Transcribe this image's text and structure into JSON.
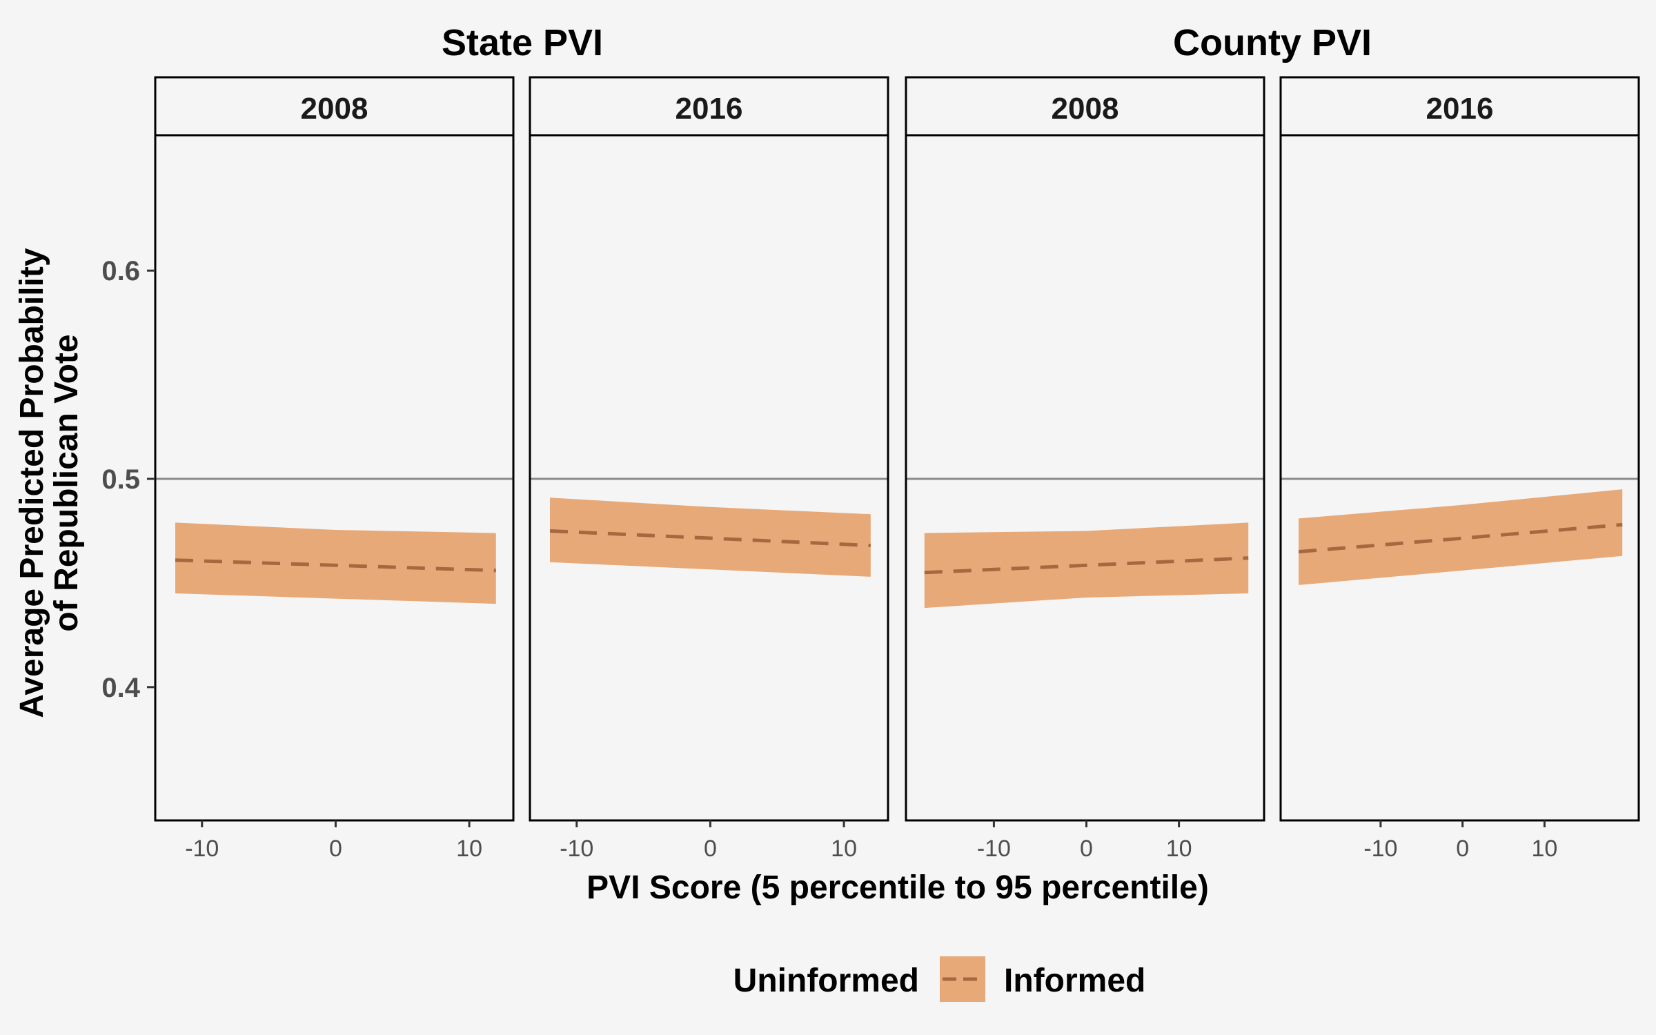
{
  "chart_data": {
    "type": "line",
    "ylabel": "Average Predicted Probability\nof Republican Vote",
    "xlabel": "PVI Score (5 percentile to 95 percentile)",
    "ylim": [
      0.336,
      0.665
    ],
    "y_ticks": [
      0.4,
      0.5,
      0.6
    ],
    "reference_line_y": 0.5,
    "grid": false,
    "legend_position": "bottom",
    "colors": {
      "ribbon": "#e8a978",
      "line": "#a8683f",
      "reference_line": "#8a8a8a",
      "background": "#f5f5f5"
    },
    "legend": {
      "labels": [
        "Uninformed",
        "Informed"
      ],
      "key_line_style": "dashed"
    },
    "groups": [
      {
        "title": "State PVI",
        "panels": [
          {
            "strip": "2008",
            "xlim": [
              -13.5,
              13.3
            ],
            "x_ticks": [
              -10,
              0,
              10
            ],
            "x_tick_labels": [
              "-10",
              "0",
              "10"
            ],
            "x": [
              -12,
              0,
              12
            ],
            "mean": [
              0.461,
              0.4585,
              0.456
            ],
            "lower": [
              0.445,
              0.4425,
              0.44
            ],
            "upper": [
              0.479,
              0.4755,
              0.474
            ]
          },
          {
            "strip": "2016",
            "xlim": [
              -13.5,
              13.3
            ],
            "x_ticks": [
              -10,
              0,
              10
            ],
            "x_tick_labels": [
              "-10",
              "0",
              "10"
            ],
            "x": [
              -12,
              0,
              12
            ],
            "mean": [
              0.475,
              0.4715,
              0.468
            ],
            "lower": [
              0.46,
              0.4565,
              0.453
            ],
            "upper": [
              0.491,
              0.4865,
              0.483
            ]
          }
        ]
      },
      {
        "title": "County PVI",
        "panels": [
          {
            "strip": "2008",
            "xlim": [
              -19.5,
              19.2
            ],
            "x_ticks": [
              -10,
              0,
              10
            ],
            "x_tick_labels": [
              "-10",
              "0",
              "10"
            ],
            "x": [
              -17.5,
              0,
              17.5
            ],
            "mean": [
              0.455,
              0.4585,
              0.462
            ],
            "lower": [
              0.438,
              0.443,
              0.445
            ],
            "upper": [
              0.474,
              0.475,
              0.479
            ]
          },
          {
            "strip": "2016",
            "xlim": [
              -22.2,
              21.5
            ],
            "x_ticks": [
              -10,
              0,
              10
            ],
            "x_tick_labels": [
              "-10",
              "0",
              "10"
            ],
            "x": [
              -20,
              0,
              19.5
            ],
            "mean": [
              0.465,
              0.4715,
              0.478
            ],
            "lower": [
              0.449,
              0.456,
              0.463
            ],
            "upper": [
              0.481,
              0.4875,
              0.495
            ]
          }
        ]
      }
    ]
  }
}
